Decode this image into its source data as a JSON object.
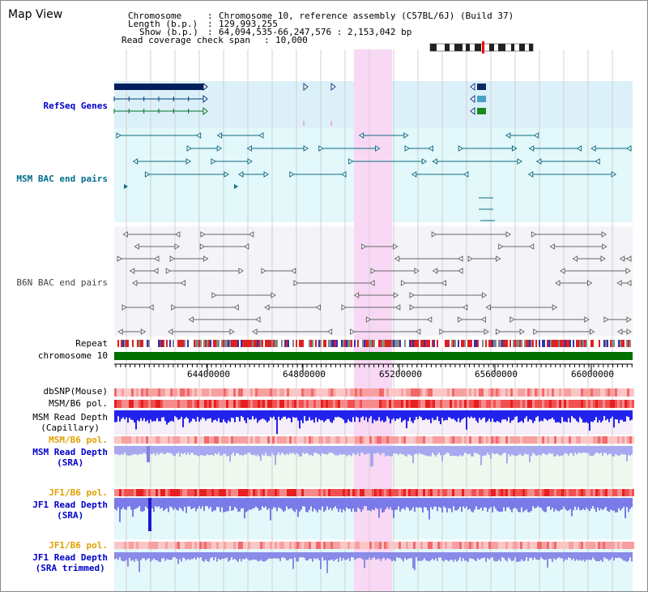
{
  "page": {
    "title": "Map View"
  },
  "header": {
    "chromosome_key": "Chromosome",
    "chromosome_value": "Chromosome 10, reference assembly (C57BL/6J) (Build 37)",
    "length_key": "Length (b.p.)",
    "length_value": "129,993,255",
    "show_key": "Show (b.p.)",
    "show_value": "64,094,535-66,247,576 : 2,153,042 bp",
    "coverage_key": "Read coverage check span",
    "coverage_value": "10,000"
  },
  "tracks": {
    "refseq": "RefSeq Genes",
    "msm_bac": "MSM BAC end pairs",
    "b6n_bac": "B6N BAC end pairs",
    "repeat": "Repeat",
    "chromosome": "chromosome 10",
    "dbsnp": "dbSNP(Mouse)",
    "msm_b6_pol_1": "MSM/B6 pol.",
    "msm_depth_cap_1": "MSM Read Depth",
    "msm_depth_cap_2": "(Capillary)",
    "msm_b6_pol_2": "MSM/B6 pol.",
    "msm_depth_sra_1": "MSM Read Depth",
    "msm_depth_sra_2": "(SRA)",
    "jf1_b6_pol_1": "JF1/B6 pol.",
    "jf1_depth_sra_1": "JF1 Read Depth",
    "jf1_depth_sra_2": "(SRA)",
    "jf1_b6_pol_2": "JF1/B6 pol.",
    "jf1_depth_trim_1": "JF1 Read Depth",
    "jf1_depth_trim_2": "(SRA trimmed)"
  },
  "axis": {
    "ticks": [
      "64400000",
      "64800000",
      "65200000",
      "65600000",
      "66000000"
    ]
  },
  "colors": {
    "refseq_bg": "#dcf0fa",
    "msm_bg": "#e2f8fa",
    "b6n_bg": "#f4f4f8",
    "highlight": "#f8d8f4",
    "chromosome_bar": "#007000",
    "depth_bar": "#2222ee",
    "pol_red": "#ee3333"
  }
}
